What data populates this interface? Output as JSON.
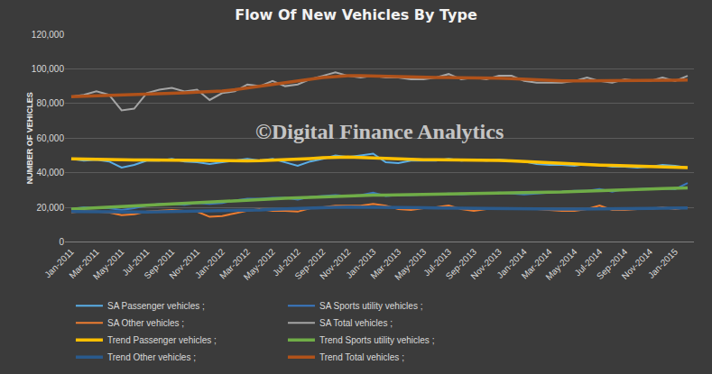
{
  "chart_data": {
    "type": "line",
    "title": "Flow Of New Vehicles By Type",
    "y_label": "NUMBER OF VEHICLES",
    "annotations": [
      "©Digital Finance Analytics"
    ],
    "categories": [
      "Jan-2011",
      null,
      "Mar-2011",
      null,
      "May-2011",
      null,
      "Jul-2011",
      null,
      "Sep-2011",
      null,
      "Nov-2011",
      null,
      "Jan-2012",
      null,
      "Mar-2012",
      null,
      "May-2012",
      null,
      "Jul-2012",
      null,
      "Sep-2012",
      null,
      "Nov-2012",
      null,
      "Jan-2013",
      null,
      "Mar-2013",
      null,
      "May-2013",
      null,
      "Jul-2013",
      null,
      "Sep-2013",
      null,
      "Nov-2013",
      null,
      "Jan-2014",
      null,
      "Mar-2014",
      null,
      "May-2014",
      null,
      "Jul-2014",
      null,
      "Sep-2014",
      null,
      "Nov-2014",
      null,
      "Jan-2015",
      null
    ],
    "ylim": [
      0,
      120000
    ],
    "yticks": [
      0,
      {
        "value": 20000,
        "label": "20,000"
      },
      {
        "value": 40000,
        "label": "40,000"
      },
      {
        "value": 60000,
        "label": "60,000"
      },
      {
        "value": 80000,
        "label": "80,000"
      },
      {
        "value": 100000,
        "label": "100,000"
      },
      {
        "value": 120000,
        "label": "120,000"
      }
    ],
    "grid": true,
    "legend": "bottom",
    "series": [
      {
        "name": "SA Passenger vehicles ;",
        "color": "#5aaee6",
        "values": [
          48000,
          47000,
          47500,
          46500,
          43000,
          44500,
          47000,
          47000,
          48000,
          46500,
          46000,
          45000,
          46000,
          47000,
          48000,
          47000,
          48000,
          46000,
          44000,
          46500,
          48000,
          50000,
          49000,
          50000,
          51000,
          46000,
          45500,
          47000,
          47000,
          47000,
          48000,
          47000,
          47500,
          47000,
          47500,
          47000,
          46500,
          45000,
          44500,
          44500,
          44000,
          45000,
          44500,
          43500,
          43500,
          43000,
          43500,
          44500,
          44000,
          43000
        ]
      },
      {
        "name": "SA Sports utility vehicles ;",
        "color": "#3a78c2",
        "values": [
          19000,
          20000,
          19500,
          19500,
          18500,
          19500,
          21000,
          22000,
          22000,
          21500,
          22500,
          22000,
          22500,
          24000,
          25000,
          25000,
          25500,
          25500,
          24500,
          26000,
          26500,
          27000,
          26500,
          27000,
          28500,
          26500,
          27000,
          27000,
          27500,
          27500,
          28000,
          27500,
          28000,
          28000,
          28500,
          28000,
          27500,
          28000,
          28500,
          29000,
          29500,
          29500,
          30500,
          29000,
          30500,
          30500,
          31000,
          31000,
          30500,
          34000
        ]
      },
      {
        "name": "SA Other vehicles ;",
        "color": "#ed7d31",
        "values": [
          17000,
          18000,
          17500,
          17000,
          15500,
          16000,
          17500,
          18000,
          18500,
          18000,
          17500,
          14500,
          15000,
          16500,
          18000,
          19000,
          18000,
          18000,
          17500,
          19500,
          20000,
          21000,
          21000,
          21000,
          22000,
          21000,
          19000,
          18500,
          19500,
          20000,
          21000,
          19000,
          18000,
          19000,
          19500,
          19500,
          19000,
          19000,
          18500,
          18000,
          18000,
          19000,
          21000,
          18500,
          18500,
          19000,
          19000,
          20000,
          19000,
          20000
        ]
      },
      {
        "name": "SA Total vehicles ;",
        "color": "#a5a5a5",
        "values": [
          84000,
          85000,
          87000,
          85000,
          76000,
          77000,
          86000,
          88000,
          89000,
          87000,
          88000,
          82000,
          86000,
          87000,
          91000,
          90000,
          93000,
          90000,
          91000,
          94000,
          96000,
          98000,
          96000,
          95000,
          96000,
          95000,
          95000,
          94000,
          94000,
          95000,
          97000,
          94000,
          95000,
          94000,
          96000,
          96000,
          93000,
          92000,
          92000,
          92000,
          93000,
          95000,
          93000,
          92000,
          94000,
          93000,
          93000,
          95000,
          93000,
          96000
        ]
      },
      {
        "name": "Trend Passenger vehicles ;",
        "color": "#ffc000",
        "values": [
          48000,
          47800,
          47600,
          47500,
          47400,
          47400,
          47400,
          47300,
          47200,
          47100,
          47000,
          46900,
          46800,
          46800,
          46900,
          47000,
          47200,
          47500,
          47800,
          48200,
          48600,
          48900,
          49000,
          48800,
          48500,
          48000,
          47700,
          47500,
          47500,
          47500,
          47500,
          47500,
          47400,
          47300,
          47100,
          46800,
          46400,
          46000,
          45600,
          45200,
          44900,
          44600,
          44400,
          44200,
          44000,
          43800,
          43600,
          43400,
          43200,
          43000
        ]
      },
      {
        "name": "Trend Sports utility vehicles ;",
        "color": "#70ad47",
        "values": [
          19000,
          19300,
          19600,
          20000,
          20400,
          20800,
          21200,
          21600,
          22000,
          22400,
          22800,
          23200,
          23600,
          24000,
          24300,
          24600,
          24900,
          25200,
          25500,
          25800,
          26100,
          26400,
          26600,
          26800,
          27000,
          27100,
          27200,
          27300,
          27400,
          27500,
          27600,
          27700,
          27800,
          27900,
          28000,
          28100,
          28200,
          28400,
          28600,
          28900,
          29200,
          29500,
          29800,
          30000,
          30200,
          30400,
          30600,
          30800,
          31000,
          31200
        ]
      },
      {
        "name": "Trend Other vehicles ;",
        "color": "#2a5a8c",
        "values": [
          17500,
          17400,
          17300,
          17200,
          17200,
          17200,
          17300,
          17400,
          17500,
          17600,
          17700,
          17800,
          17900,
          18000,
          18200,
          18500,
          18800,
          19100,
          19400,
          19700,
          19900,
          20000,
          20100,
          20100,
          20100,
          20000,
          19900,
          19800,
          19700,
          19600,
          19500,
          19500,
          19400,
          19300,
          19200,
          19100,
          19000,
          19000,
          19000,
          19000,
          19000,
          19000,
          19000,
          19100,
          19200,
          19300,
          19400,
          19500,
          19500,
          19600
        ]
      },
      {
        "name": "Trend Total vehicles ;",
        "color": "#b0521a",
        "values": [
          84000,
          84200,
          84400,
          84600,
          84800,
          85000,
          85300,
          85600,
          85900,
          86200,
          86500,
          86800,
          87200,
          88000,
          89000,
          90000,
          91000,
          92000,
          93000,
          94000,
          95000,
          95500,
          96000,
          96000,
          95800,
          95500,
          95300,
          95000,
          95000,
          95000,
          95000,
          95000,
          95000,
          94800,
          94600,
          94400,
          94000,
          93600,
          93300,
          93000,
          93000,
          93000,
          93000,
          93000,
          93000,
          93000,
          93000,
          93200,
          93400,
          93600
        ]
      }
    ]
  }
}
